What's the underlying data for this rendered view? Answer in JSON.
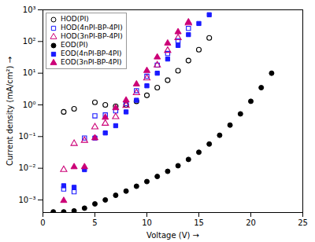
{
  "chart_data": {
    "type": "scatter",
    "xlabel": "Voltage (V)",
    "ylabel": "Current density (mA/cm²)",
    "xlim": [
      0,
      25
    ],
    "ylim": [
      0.0004,
      1000
    ],
    "xticks": [
      0,
      5,
      10,
      15,
      20,
      25
    ],
    "yticks": [
      {
        "value": 0.001,
        "label": "10⁻³"
      },
      {
        "value": 0.01,
        "label": "10⁻²"
      },
      {
        "value": 0.1,
        "label": "10⁻¹"
      },
      {
        "value": 1,
        "label": "10⁰"
      },
      {
        "value": 10,
        "label": "10¹"
      },
      {
        "value": 100,
        "label": "10²"
      },
      {
        "value": 1000,
        "label": "10³"
      }
    ],
    "log": "y",
    "grid": false,
    "legend": "upper left",
    "series": [
      {
        "name": "HOD(PI)",
        "color": "#000000",
        "marker": "circle-open",
        "x": [
          2,
          3,
          5,
          6,
          7,
          8,
          9,
          10,
          11,
          12,
          13,
          14,
          15,
          16
        ],
        "values": [
          0.6,
          0.75,
          1.2,
          1.0,
          0.9,
          1.0,
          1.3,
          2.0,
          3.5,
          6.0,
          12,
          25,
          55,
          130
        ]
      },
      {
        "name": "HOD(4nPI-BP-4PI)",
        "color": "#1a1aff",
        "marker": "square-open",
        "x": [
          2,
          3,
          4,
          5,
          6,
          7,
          8,
          9,
          10,
          11,
          12,
          13,
          14
        ],
        "values": [
          0.0022,
          0.0018,
          0.09,
          0.45,
          0.48,
          0.65,
          1.1,
          2.8,
          8.0,
          18,
          42,
          105,
          260
        ]
      },
      {
        "name": "HOD(3nPI-BP-4PI)",
        "color": "#cc0077",
        "marker": "triangle-open",
        "x": [
          2,
          3,
          4,
          5,
          6,
          7,
          8,
          9,
          10,
          11,
          12,
          13,
          14
        ],
        "values": [
          0.009,
          0.06,
          0.075,
          0.2,
          0.26,
          0.42,
          0.95,
          2.4,
          7.0,
          18,
          52,
          130,
          380
        ]
      },
      {
        "name": "EOD(PI)",
        "color": "#000000",
        "marker": "circle",
        "x": [
          1,
          2,
          3,
          4,
          5,
          6,
          7,
          8,
          9,
          10,
          11,
          12,
          13,
          14,
          15,
          16,
          17,
          18,
          19,
          20,
          21,
          22
        ],
        "values": [
          0.00042,
          0.00042,
          0.00045,
          0.00055,
          0.00075,
          0.001,
          0.0014,
          0.0019,
          0.0027,
          0.0038,
          0.0055,
          0.008,
          0.012,
          0.019,
          0.032,
          0.058,
          0.11,
          0.23,
          0.52,
          1.3,
          3.5,
          10
        ]
      },
      {
        "name": "EOD(4nPI-BP-4PI)",
        "color": "#1a1aff",
        "marker": "square",
        "x": [
          2,
          3,
          4,
          5,
          6,
          7,
          8,
          9,
          10,
          11,
          12,
          13,
          14,
          15,
          16
        ],
        "values": [
          0.0028,
          0.0025,
          0.009,
          0.09,
          0.13,
          0.22,
          0.6,
          1.4,
          4.0,
          10,
          28,
          75,
          165,
          370,
          700
        ]
      },
      {
        "name": "EOD(3nPI-BP-4PI)",
        "color": "#cc0077",
        "marker": "triangle",
        "x": [
          2,
          3,
          4,
          5,
          6,
          7,
          8,
          9,
          10,
          11,
          12,
          13,
          14
        ],
        "values": [
          0.00095,
          0.011,
          0.011,
          0.09,
          0.4,
          0.8,
          1.4,
          4.5,
          12,
          32,
          88,
          200,
          410
        ]
      }
    ]
  }
}
